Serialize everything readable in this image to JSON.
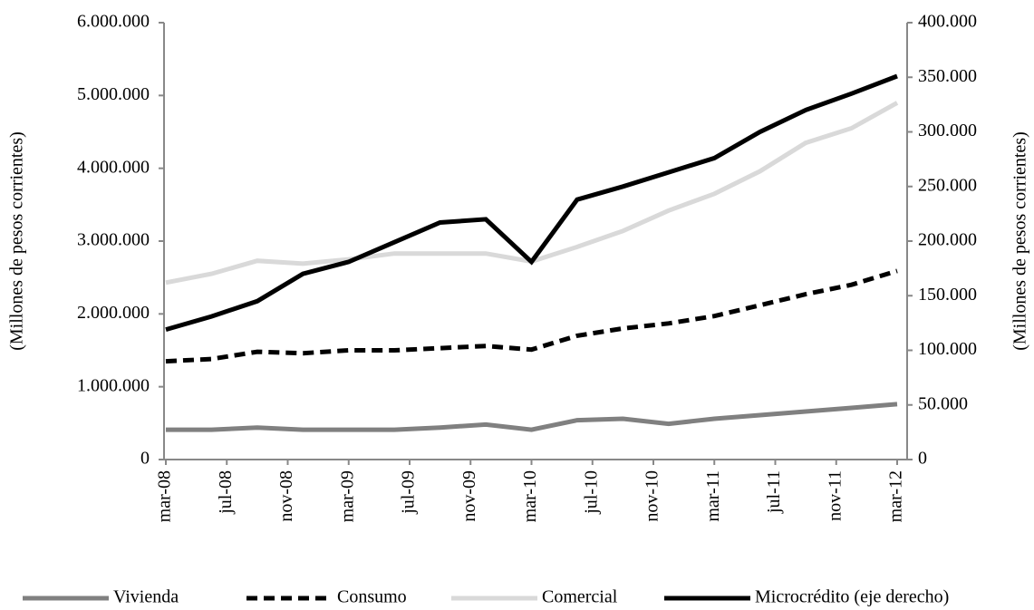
{
  "chart_data": {
    "type": "line",
    "x": [
      "2008-03",
      "2008-06",
      "2008-09",
      "2008-12",
      "2009-03",
      "2009-06",
      "2009-09",
      "2009-12",
      "2010-03",
      "2010-06",
      "2010-09",
      "2010-12",
      "2011-03",
      "2011-06",
      "2011-09",
      "2011-12",
      "2012-03"
    ],
    "xticks": [
      {
        "value": "2008-03",
        "label": "mar-08"
      },
      {
        "value": "2008-07",
        "label": "jul-08"
      },
      {
        "value": "2008-11",
        "label": "nov-08"
      },
      {
        "value": "2009-03",
        "label": "mar-09"
      },
      {
        "value": "2009-07",
        "label": "jul-09"
      },
      {
        "value": "2009-11",
        "label": "nov-09"
      },
      {
        "value": "2010-03",
        "label": "mar-10"
      },
      {
        "value": "2010-07",
        "label": "jul-10"
      },
      {
        "value": "2010-11",
        "label": "nov-10"
      },
      {
        "value": "2011-03",
        "label": "mar-11"
      },
      {
        "value": "2011-07",
        "label": "jul-11"
      },
      {
        "value": "2011-11",
        "label": "nov-11"
      },
      {
        "value": "2012-03",
        "label": "mar-12"
      }
    ],
    "ylabel": "(Millones de pesos corrientes)",
    "y2label": "(Millones de pesos corrientes)",
    "ylim": [
      0,
      6000000
    ],
    "yticks": [
      0,
      {
        "value": 1000000,
        "label": "1.000.000"
      },
      {
        "value": 2000000,
        "label": "2.000.000"
      },
      {
        "value": 3000000,
        "label": "3.000.000"
      },
      {
        "value": 4000000,
        "label": "4.000.000"
      },
      {
        "value": 5000000,
        "label": "5.000.000"
      },
      {
        "value": 6000000,
        "label": "6.000.000"
      }
    ],
    "y2lim": [
      0,
      400000
    ],
    "y2ticks": [
      0,
      {
        "value": 50000,
        "label": "50.000"
      },
      {
        "value": 100000,
        "label": "100.000"
      },
      {
        "value": 150000,
        "label": "150.000"
      },
      {
        "value": 200000,
        "label": "200.000"
      },
      {
        "value": 250000,
        "label": "250.000"
      },
      {
        "value": 300000,
        "label": "300.000"
      },
      {
        "value": 350000,
        "label": "350.000"
      },
      {
        "value": 400000,
        "label": "400.000"
      }
    ],
    "legend": "bottom",
    "series": [
      {
        "name": "Vivienda",
        "color": "#808080",
        "dashed": false,
        "values": [
          410000,
          410000,
          440000,
          410000,
          410000,
          410000,
          440000,
          480000,
          410000,
          540000,
          560000,
          490000,
          560000,
          610000,
          660000,
          710000,
          760000
        ]
      },
      {
        "name": "Consumo",
        "color": "#000000",
        "dashed": true,
        "values": [
          1350000,
          1380000,
          1480000,
          1460000,
          1500000,
          1500000,
          1530000,
          1560000,
          1510000,
          1700000,
          1800000,
          1870000,
          1970000,
          2120000,
          2270000,
          2400000,
          2590000
        ]
      },
      {
        "name": "Comercial",
        "color": "#d9d9d9",
        "dashed": false,
        "values": [
          2430000,
          2550000,
          2730000,
          2690000,
          2750000,
          2830000,
          2830000,
          2830000,
          2720000,
          2920000,
          3140000,
          3420000,
          3650000,
          3960000,
          4350000,
          4550000,
          4900000
        ]
      },
      {
        "name": "Microcrédito (eje derecho)",
        "color": "#000000",
        "dashed": false,
        "axis": "y2",
        "values": [
          119000,
          131000,
          145000,
          170000,
          181000,
          199000,
          217000,
          220000,
          181000,
          238000,
          250000,
          263000,
          276000,
          300000,
          320000,
          335000,
          351000
        ]
      }
    ]
  }
}
